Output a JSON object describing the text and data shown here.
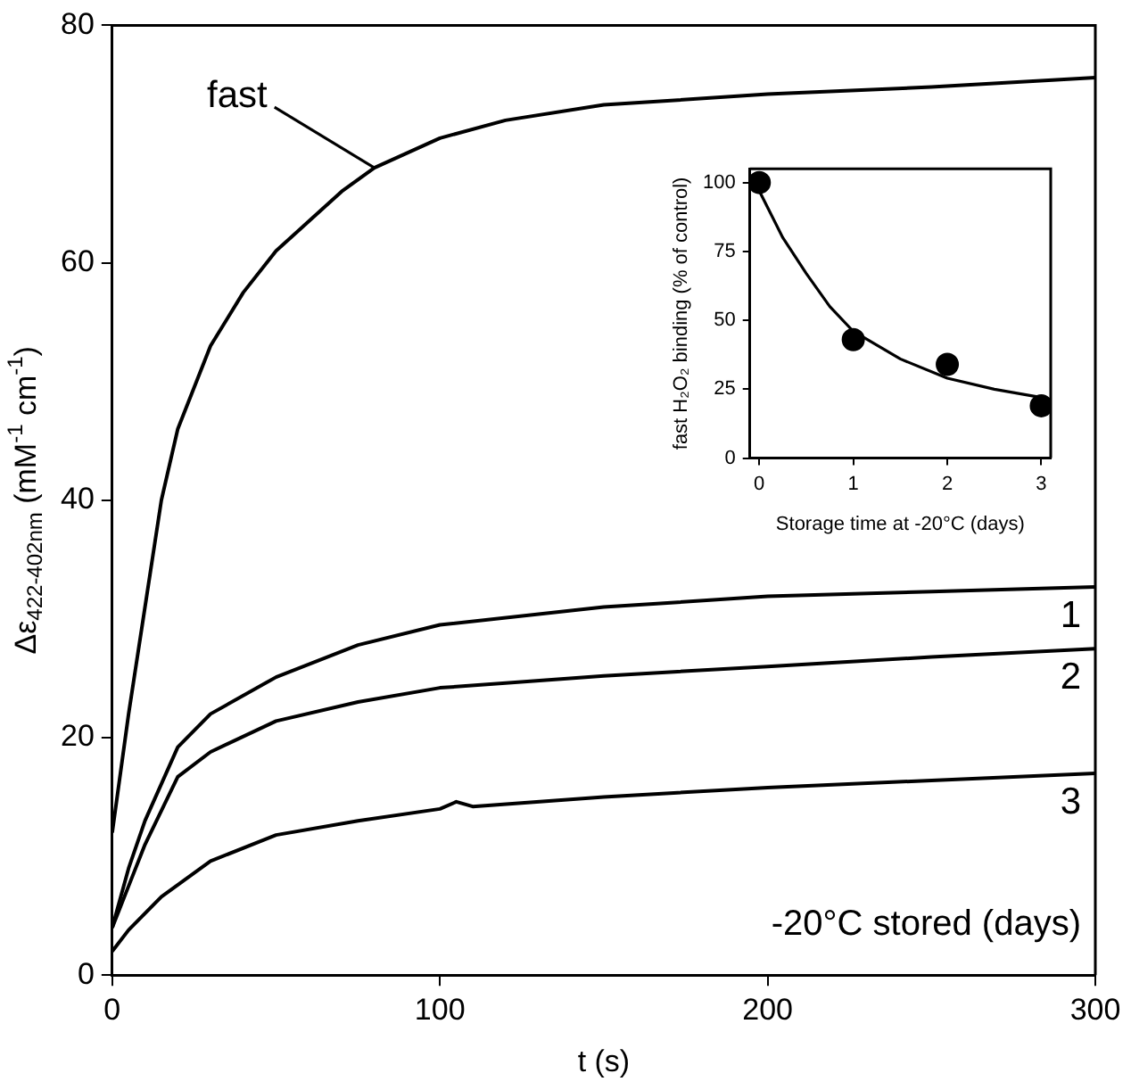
{
  "chart_data": [
    {
      "type": "line",
      "xlabel": "t (s)",
      "ylabel": "Δε$_{422-402nm}$ (mM$^{-1}$ cm$^{-1}$)",
      "xlim": [
        0,
        300
      ],
      "ylim": [
        0,
        80
      ],
      "xticks": [
        0,
        100,
        200,
        300
      ],
      "yticks": [
        0,
        20,
        40,
        60,
        80
      ],
      "grid": false,
      "legend": false,
      "marker": "none",
      "line_style": "solid",
      "annotations": [
        "-20°C stored (days)"
      ],
      "series": [
        {
          "name": "fast",
          "color": "#000000",
          "x": [
            0,
            5,
            10,
            15,
            20,
            30,
            40,
            50,
            60,
            70,
            80,
            100,
            120,
            150,
            200,
            250,
            300
          ],
          "values": [
            12,
            22,
            31,
            40,
            46,
            53,
            57.5,
            61,
            63.5,
            66,
            68,
            70.5,
            72,
            73.3,
            74.2,
            74.8,
            75.6
          ]
        },
        {
          "name": "1",
          "color": "#000000",
          "x": [
            0,
            5,
            10,
            20,
            30,
            50,
            75,
            100,
            150,
            200,
            250,
            300
          ],
          "values": [
            4,
            9,
            13,
            19.2,
            22,
            25.1,
            27.8,
            29.5,
            31,
            31.9,
            32.3,
            32.7
          ]
        },
        {
          "name": "2",
          "color": "#000000",
          "x": [
            0,
            5,
            10,
            20,
            30,
            50,
            75,
            100,
            150,
            200,
            250,
            300
          ],
          "values": [
            4,
            7.5,
            11,
            16.7,
            18.8,
            21.4,
            23,
            24.2,
            25.2,
            26,
            26.8,
            27.5
          ]
        },
        {
          "name": "3",
          "color": "#000000",
          "x": [
            0,
            5,
            15,
            30,
            50,
            75,
            100,
            105,
            110,
            150,
            200,
            250,
            300
          ],
          "values": [
            2,
            3.8,
            6.6,
            9.6,
            11.8,
            13,
            14,
            14.6,
            14.2,
            15,
            15.8,
            16.4,
            17
          ]
        }
      ]
    },
    {
      "type": "scatter",
      "xlabel": "Storage time at -20°C (days)",
      "ylabel": "fast H₂O₂ binding (% of control)",
      "xlim": [
        -0.1,
        3.1
      ],
      "ylim": [
        0,
        105
      ],
      "xticks": [
        0,
        1,
        2,
        3
      ],
      "yticks": [
        0,
        25,
        50,
        75,
        100
      ],
      "grid": false,
      "legend": false,
      "series": [
        {
          "color": "#000000",
          "marker": "circle",
          "x": [
            0,
            1,
            2,
            3
          ],
          "values": [
            100,
            43,
            34,
            19
          ]
        },
        {
          "type": "line",
          "marker": "none",
          "color": "#000000",
          "x": [
            0,
            0.25,
            0.5,
            0.75,
            1,
            1.5,
            2,
            2.5,
            3
          ],
          "values": [
            97,
            80,
            67,
            55,
            46,
            36,
            29,
            25,
            22
          ]
        }
      ]
    }
  ]
}
